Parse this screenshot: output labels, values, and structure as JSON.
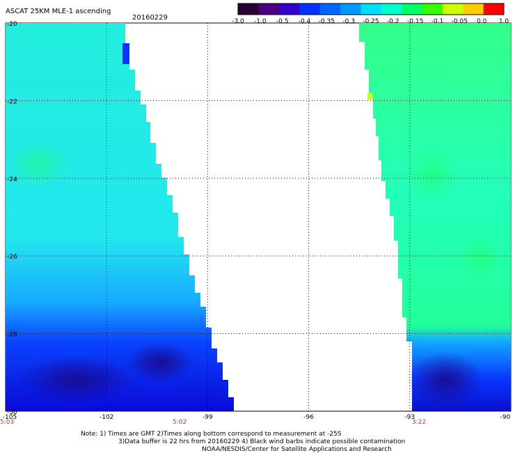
{
  "header": {
    "product": "ASCAT 25KM MLE-1 ascending",
    "date": "20160229"
  },
  "colorbar": {
    "labels": [
      "-3.0",
      "-1.0",
      "-0.5",
      "-0.4",
      "-0.35",
      "-0.3",
      "-0.25",
      "-0.2",
      "-0.15",
      "-0.1",
      "-0.05",
      "0.0",
      "1.0"
    ],
    "colors": [
      "#2a0033",
      "#4b0082",
      "#3300cc",
      "#0033ff",
      "#0066ff",
      "#0099ff",
      "#00ddff",
      "#00ffcc",
      "#00ff66",
      "#33ff00",
      "#ccff00",
      "#ffcc00",
      "#ff0000"
    ]
  },
  "map": {
    "lat_labels": [
      "-20",
      "-22",
      "-24",
      "-26",
      "-28",
      "-30"
    ],
    "lon_labels": [
      "-105",
      "-102",
      "-99",
      "-96",
      "-93",
      "-90"
    ],
    "pass_times": [
      "5:03",
      "5:02",
      "3:22"
    ]
  },
  "footer": {
    "line1": "Note: 1) Times are GMT 2)Times along bottom correspond to measurement at -25S",
    "line2": "3)Data buffer is 22 hrs from 20160229 4) Black wind barbs indicate possible contamination",
    "line3": "NOAA/NESDIS/Center for Satellite Applications and Research"
  }
}
